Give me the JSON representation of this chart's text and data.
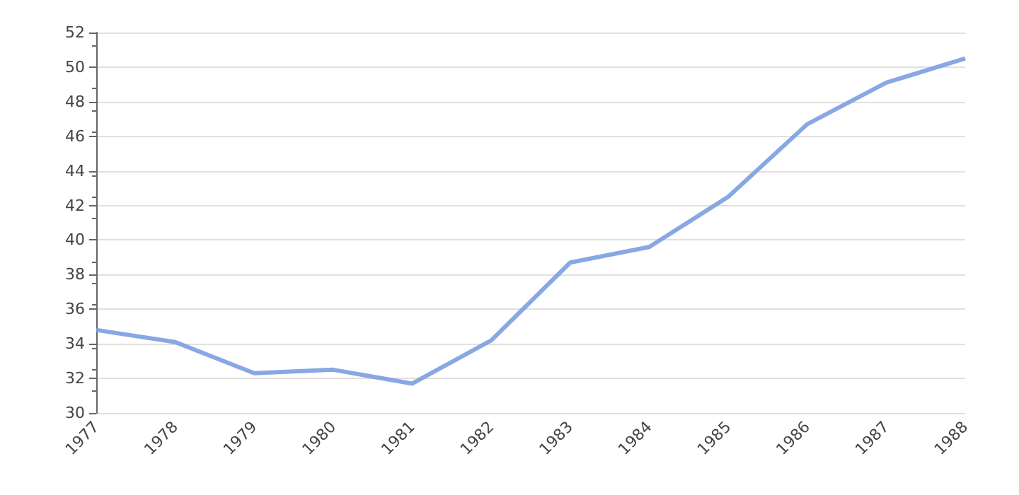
{
  "chart_data": {
    "type": "line",
    "categories": [
      "1977",
      "1978",
      "1979",
      "1980",
      "1981",
      "1982",
      "1983",
      "1984",
      "1985",
      "1986",
      "1987",
      "1988"
    ],
    "series": [
      {
        "color": "#7b9fe0",
        "values": [
          34.8,
          34.1,
          32.3,
          32.5,
          31.7,
          34.2,
          38.7,
          39.6,
          42.5,
          46.7,
          49.1,
          50.5
        ]
      }
    ],
    "ylim": [
      30,
      52
    ],
    "yticks": [
      30,
      32,
      34,
      36,
      38,
      40,
      42,
      44,
      46,
      48,
      50,
      52
    ],
    "grid": "y",
    "marker": "none",
    "line_style": "solid"
  }
}
